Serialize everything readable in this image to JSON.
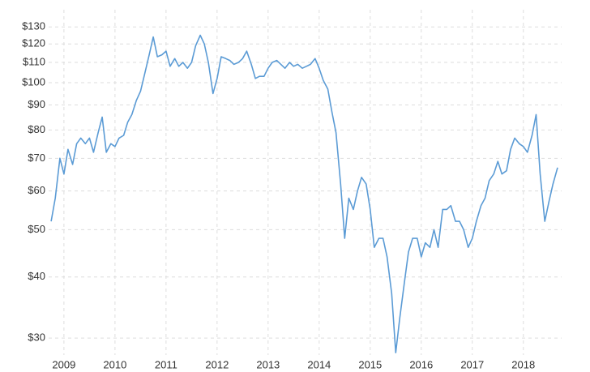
{
  "chart_data": {
    "type": "line",
    "log_y": true,
    "grid": true,
    "color": "#5b9bd5",
    "xlim": [
      2009.2,
      2019.25
    ],
    "ylim": [
      27.7,
      141
    ],
    "xticks": [
      {
        "value": 2009.5,
        "label": "2009"
      },
      {
        "value": 2010.5,
        "label": "2010"
      },
      {
        "value": 2011.5,
        "label": "2011"
      },
      {
        "value": 2012.5,
        "label": "2012"
      },
      {
        "value": 2013.5,
        "label": "2013"
      },
      {
        "value": 2014.5,
        "label": "2014"
      },
      {
        "value": 2015.5,
        "label": "2015"
      },
      {
        "value": 2016.5,
        "label": "2016"
      },
      {
        "value": 2017.5,
        "label": "2017"
      },
      {
        "value": 2018.5,
        "label": "2018"
      }
    ],
    "yticks": [
      {
        "value": 30,
        "label": "$30"
      },
      {
        "value": 40,
        "label": "$40"
      },
      {
        "value": 50,
        "label": "$50"
      },
      {
        "value": 60,
        "label": "$60"
      },
      {
        "value": 70,
        "label": "$70"
      },
      {
        "value": 80,
        "label": "$80"
      },
      {
        "value": 90,
        "label": "$90"
      },
      {
        "value": 100,
        "label": "$100"
      },
      {
        "value": 110,
        "label": "$110"
      },
      {
        "value": 120,
        "label": "$120"
      },
      {
        "value": 130,
        "label": "$130"
      }
    ],
    "x": [
      2009.25,
      2009.33,
      2009.42,
      2009.5,
      2009.58,
      2009.67,
      2009.75,
      2009.83,
      2009.92,
      2010,
      2010.08,
      2010.17,
      2010.25,
      2010.33,
      2010.42,
      2010.5,
      2010.58,
      2010.67,
      2010.75,
      2010.83,
      2010.92,
      2011,
      2011.08,
      2011.17,
      2011.25,
      2011.33,
      2011.42,
      2011.5,
      2011.58,
      2011.67,
      2011.75,
      2011.83,
      2011.92,
      2012,
      2012.08,
      2012.17,
      2012.25,
      2012.33,
      2012.42,
      2012.5,
      2012.58,
      2012.67,
      2012.75,
      2012.83,
      2012.92,
      2013,
      2013.08,
      2013.17,
      2013.25,
      2013.33,
      2013.42,
      2013.5,
      2013.58,
      2013.67,
      2013.75,
      2013.83,
      2013.92,
      2014,
      2014.08,
      2014.17,
      2014.25,
      2014.33,
      2014.42,
      2014.5,
      2014.58,
      2014.67,
      2014.75,
      2014.83,
      2014.92,
      2015,
      2015.08,
      2015.17,
      2015.25,
      2015.33,
      2015.42,
      2015.5,
      2015.58,
      2015.67,
      2015.75,
      2015.83,
      2015.92,
      2016,
      2016.08,
      2016.17,
      2016.25,
      2016.33,
      2016.42,
      2016.5,
      2016.58,
      2016.67,
      2016.75,
      2016.83,
      2016.92,
      2017,
      2017.08,
      2017.17,
      2017.25,
      2017.33,
      2017.42,
      2017.5,
      2017.58,
      2017.67,
      2017.75,
      2017.83,
      2017.92,
      2018,
      2018.08,
      2018.17,
      2018.25,
      2018.33,
      2018.42,
      2018.5,
      2018.58,
      2018.67,
      2018.75,
      2018.83,
      2018.92,
      2019,
      2019.08,
      2019.17
    ],
    "values": [
      52,
      58,
      70,
      65,
      73,
      68,
      75,
      77,
      75,
      77,
      72,
      79,
      85,
      72,
      75,
      74,
      77,
      78,
      83,
      86,
      92,
      96,
      104,
      114,
      124,
      113,
      114,
      116,
      108,
      112,
      108,
      110,
      107,
      110,
      119,
      125,
      120,
      110,
      95,
      102,
      113,
      112,
      111,
      109,
      110,
      112,
      116,
      109,
      102,
      103,
      103,
      107,
      110,
      111,
      109,
      107,
      110,
      108,
      109,
      107,
      108,
      109,
      112,
      107,
      101,
      97,
      87,
      79,
      62,
      48,
      58,
      55,
      60,
      64,
      62,
      55,
      46,
      48,
      48,
      44,
      37,
      28,
      33,
      39,
      45,
      48,
      48,
      44,
      47,
      46,
      50,
      46,
      55,
      55,
      56,
      52,
      52,
      50,
      46,
      48,
      52,
      56,
      58,
      63,
      65,
      69,
      65,
      66,
      73,
      77,
      75,
      74,
      72,
      78,
      86,
      65,
      52,
      57,
      62,
      67
    ]
  }
}
